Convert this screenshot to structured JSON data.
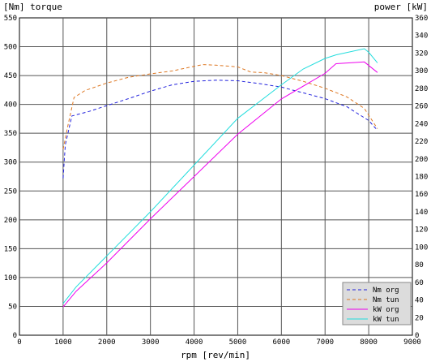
{
  "chart_data": {
    "type": "line",
    "title": "",
    "xlabel": "rpm [rev/min]",
    "ylabel_left": "[Nm] torque",
    "ylabel_right": "power [kW]",
    "xlim": [
      0,
      9000
    ],
    "ylim_left": [
      0,
      550
    ],
    "ylim_right": [
      0,
      360
    ],
    "x_ticks": [
      "0",
      "1000",
      "2000",
      "3000",
      "4000",
      "5000",
      "6000",
      "7000",
      "8000",
      "9000"
    ],
    "y_left_ticks": [
      "0",
      "50",
      "100",
      "150",
      "200",
      "250",
      "300",
      "350",
      "400",
      "450",
      "500",
      "550"
    ],
    "y_right_ticks": [
      "0",
      "20",
      "40",
      "60",
      "80",
      "100",
      "120",
      "140",
      "160",
      "180",
      "200",
      "220",
      "240",
      "260",
      "280",
      "300",
      "320",
      "340",
      "360"
    ],
    "grid": true,
    "legend_position": "bottom-right",
    "series": [
      {
        "name": "Nm org",
        "axis": "left",
        "dash": true,
        "color": "#2222dd",
        "points": [
          [
            1000,
            272
          ],
          [
            1050,
            330
          ],
          [
            1200,
            380
          ],
          [
            1600,
            388
          ],
          [
            2000,
            398
          ],
          [
            2500,
            410
          ],
          [
            3000,
            423
          ],
          [
            3500,
            434
          ],
          [
            4000,
            440
          ],
          [
            4500,
            442
          ],
          [
            5000,
            441
          ],
          [
            5500,
            436
          ],
          [
            6000,
            430
          ],
          [
            6500,
            420
          ],
          [
            7000,
            410
          ],
          [
            7500,
            396
          ],
          [
            8000,
            372
          ],
          [
            8200,
            355
          ]
        ]
      },
      {
        "name": "Nm tun",
        "axis": "left",
        "dash": true,
        "color": "#dd7722",
        "points": [
          [
            1000,
            322
          ],
          [
            1100,
            360
          ],
          [
            1250,
            412
          ],
          [
            1500,
            424
          ],
          [
            2000,
            437
          ],
          [
            2500,
            447
          ],
          [
            3000,
            453
          ],
          [
            3500,
            458
          ],
          [
            4000,
            466
          ],
          [
            4200,
            469
          ],
          [
            4500,
            468
          ],
          [
            5000,
            465
          ],
          [
            5300,
            456
          ],
          [
            5600,
            455
          ],
          [
            6000,
            450
          ],
          [
            6500,
            440
          ],
          [
            7000,
            428
          ],
          [
            7500,
            413
          ],
          [
            7900,
            393
          ],
          [
            8200,
            358
          ]
        ]
      },
      {
        "name": "kW org",
        "axis": "right",
        "dash": false,
        "color": "#ee00ee",
        "points": [
          [
            1000,
            32
          ],
          [
            1300,
            50
          ],
          [
            2000,
            82
          ],
          [
            3000,
            132
          ],
          [
            4000,
            180
          ],
          [
            5000,
            228
          ],
          [
            6000,
            268
          ],
          [
            7000,
            297
          ],
          [
            7250,
            308
          ],
          [
            7900,
            310
          ],
          [
            8200,
            298
          ]
        ]
      },
      {
        "name": "kW tun",
        "axis": "right",
        "dash": false,
        "color": "#22dddd",
        "points": [
          [
            1000,
            36
          ],
          [
            1300,
            55
          ],
          [
            2000,
            90
          ],
          [
            3000,
            140
          ],
          [
            4000,
            193
          ],
          [
            5000,
            246
          ],
          [
            6000,
            284
          ],
          [
            6500,
            302
          ],
          [
            7000,
            314
          ],
          [
            7250,
            318
          ],
          [
            7900,
            325
          ],
          [
            8000,
            321
          ],
          [
            8200,
            309
          ]
        ]
      }
    ]
  }
}
